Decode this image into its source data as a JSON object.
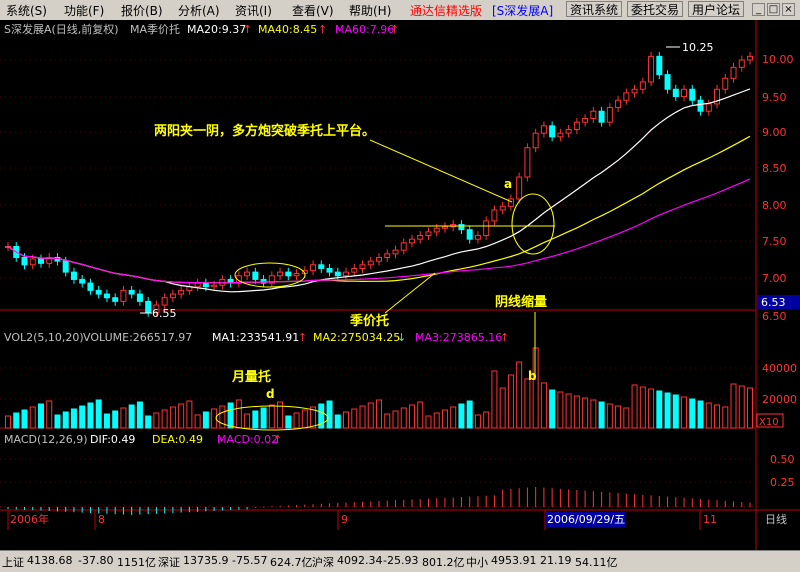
{
  "menu": {
    "items": [
      "系统(S)",
      "功能(F)",
      "报价(B)",
      "分析(A)",
      "资讯(I)",
      "查看(V)",
      "帮助(H)"
    ],
    "brand": "通达信精选版",
    "stock_tag": "[S深发展A]",
    "buttons": [
      "资讯系统",
      "委托交易",
      "用户论坛"
    ],
    "win_min": "_",
    "win_max": "□",
    "win_close": "×"
  },
  "header": {
    "title": "S深发展A(日线,前复权)",
    "indicator": "MA季价托",
    "ma20": "MA20:9.37",
    "ma40": "MA40:8.45",
    "ma60": "MA60:7.96",
    "arrow": "↑"
  },
  "colors": {
    "bg": "#000000",
    "up": "#ff3232",
    "down": "#00ffff",
    "ma20": "#ffffff",
    "ma40": "#ffff00",
    "ma60": "#ff00ff",
    "annotation": "#ffff00",
    "grid": "#800000",
    "axis": "#c00000"
  },
  "price_axis": {
    "ticks": [
      "10.00",
      "9.50",
      "9.00",
      "8.50",
      "8.00",
      "7.50",
      "7.00",
      "6.50"
    ],
    "current": "6.53"
  },
  "annotations": {
    "main_text": "两阳夹一阴，多方炮突破季托上平台。",
    "label_a": "a",
    "label_b": "b",
    "label_d": "d",
    "jijiatuo": "季价托",
    "yinxian": "阴线缩量",
    "yueliangtuo": "月量托",
    "high": "10.25",
    "low": "6.55"
  },
  "volume": {
    "header_name": "VOL2(5,10,20)",
    "header_vol": "VOLUME:266517.97",
    "ma1": "MA1:233541.91",
    "ma2": "MA2:275034.25",
    "ma3": "MA3:273865.16",
    "arrow_up": "↑",
    "arrow_dn": "↓",
    "ticks": [
      "40000",
      "20000"
    ],
    "unit": "X10"
  },
  "macd": {
    "header": "MACD(12,26,9)",
    "dif": "DIF:0.49",
    "dea": "DEA:0.49",
    "macd": "MACD:0.02",
    "arrow": "↑",
    "ticks": [
      "0.50",
      "0.25"
    ]
  },
  "time_axis": {
    "labels": [
      "2006年",
      "8",
      "9",
      "2006/09/29/五",
      "11"
    ],
    "period": "日线"
  },
  "status": {
    "sh_label": "上证",
    "sh_val": "4138.68",
    "sh_chg": "-37.80",
    "sh_amt": "1151亿",
    "sz_label": "深证",
    "sz_val": "13735.9",
    "sz_chg": "-75.57",
    "sz_amt": "624.7亿",
    "hs_label": "沪深",
    "hs_val": "4092.34",
    "hs_chg": "-25.93",
    "hs_amt": "801.2亿",
    "zx_label": "中小",
    "zx_val": "4953.91",
    "zx_chg": "21.19",
    "zx_amt": "54.11亿"
  }
}
